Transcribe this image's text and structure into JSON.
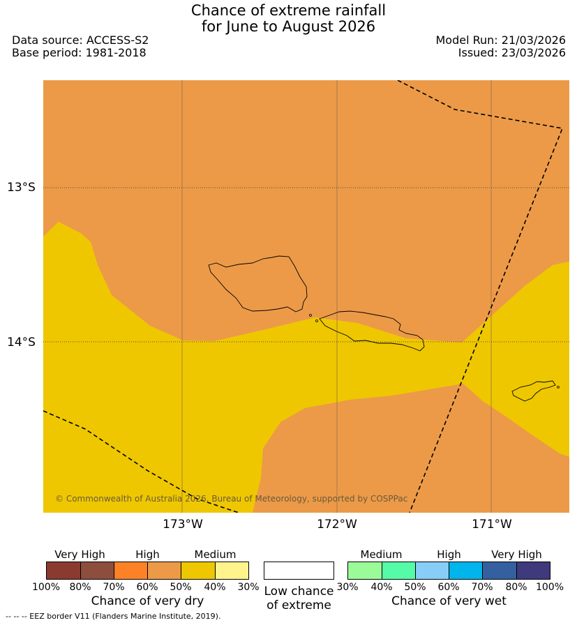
{
  "title": {
    "line1": "Chance of extreme rainfall",
    "line2": "for June to August 2026"
  },
  "meta": {
    "data_source": "Data source: ACCESS-S2",
    "base_period": "Base period: 1981-2018",
    "model_run": "Model Run: 21/03/2026",
    "issued": "Issued: 23/03/2026"
  },
  "map": {
    "lat_labels": [
      "13°S",
      "14°S"
    ],
    "lon_labels": [
      "173°W",
      "172°W",
      "171°W"
    ],
    "copyright": "© Commonwealth of Australia 2026, Bureau of Meteorology, supported by COSPPac",
    "colors": {
      "high": "#ec9a48",
      "medium": "#eec700",
      "land_outline": "#000000"
    }
  },
  "legend": {
    "dry": {
      "categories": [
        "Very High",
        "High",
        "Medium"
      ],
      "ticks": [
        "100%",
        "80%",
        "70%",
        "60%",
        "50%",
        "40%",
        "30%"
      ],
      "colors": [
        "#8b3a30",
        "#8e4e3e",
        "#fd8126",
        "#ec9a48",
        "#eec700",
        "#fff38c"
      ],
      "title": "Chance of very dry"
    },
    "low": {
      "line1": "Low chance",
      "line2": "of extreme",
      "color": "#ffffff"
    },
    "wet": {
      "categories": [
        "Medium",
        "High",
        "Very High"
      ],
      "ticks": [
        "30%",
        "40%",
        "50%",
        "60%",
        "70%",
        "80%",
        "100%"
      ],
      "colors": [
        "#9bfb98",
        "#55fba6",
        "#87cdf8",
        "#00b4ec",
        "#3460a0",
        "#3f3a7c"
      ],
      "title": "Chance of very wet"
    }
  },
  "footnote": "--  --  -- EEZ border V11 (Flanders Marine Institute, 2019)."
}
